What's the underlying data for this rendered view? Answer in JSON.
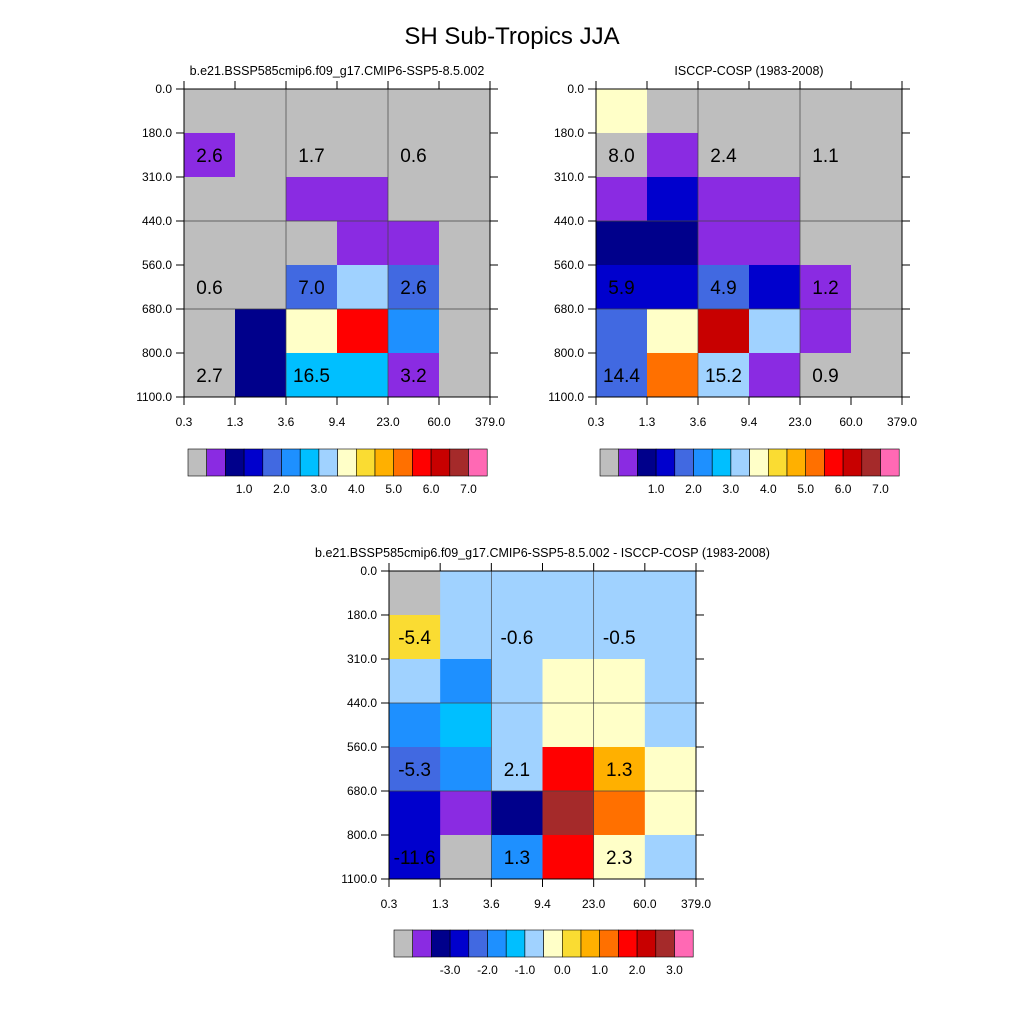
{
  "title": "SH Sub-Tropics JJA",
  "chart_data": [
    {
      "type": "heatmap",
      "title": "b.e21.BSSP585cmip6.f09_g17.CMIP6-SSP5-8.5.002",
      "x_ticks": [
        "0.3",
        "1.3",
        "3.6",
        "9.4",
        "23.0",
        "60.0",
        "379.0"
      ],
      "y_ticks": [
        "0.0",
        "180.0",
        "310.0",
        "440.0",
        "560.0",
        "680.0",
        "800.0",
        "1100.0"
      ],
      "cells": [
        [
          0,
          0,
          0,
          0,
          0,
          0
        ],
        [
          1,
          0,
          0,
          0,
          0,
          0
        ],
        [
          0,
          0,
          1,
          1,
          0,
          0
        ],
        [
          0,
          0,
          0,
          1,
          1,
          0
        ],
        [
          0,
          0,
          4,
          7,
          4,
          0
        ],
        [
          0,
          2,
          8,
          12,
          5,
          0
        ],
        [
          0,
          2,
          6,
          6,
          1,
          0
        ]
      ],
      "annotations": [
        {
          "row": 1,
          "col": 0,
          "text": "2.6"
        },
        {
          "row": 1,
          "col": 2,
          "text": "1.7"
        },
        {
          "row": 1,
          "col": 4,
          "text": "0.6"
        },
        {
          "row": 4,
          "col": 0,
          "text": "0.6"
        },
        {
          "row": 4,
          "col": 2,
          "text": "7.0"
        },
        {
          "row": 4,
          "col": 4,
          "text": "2.6"
        },
        {
          "row": 6,
          "col": 0,
          "text": "2.7"
        },
        {
          "row": 6,
          "col": 2,
          "text": "16.5"
        },
        {
          "row": 6,
          "col": 4,
          "text": "3.2"
        }
      ],
      "legend_colors": [
        "#bebebe",
        "#8a2be2",
        "#00008b",
        "#0000cd",
        "#4169e1",
        "#1e90ff",
        "#00bfff",
        "#a0d2ff",
        "#ffffc8",
        "#fadc32",
        "#ffb000",
        "#ff7000",
        "#ff0000",
        "#c80000",
        "#a52a2a",
        "#ff69b4"
      ],
      "legend_labels": [
        "1.0",
        "2.0",
        "3.0",
        "4.0",
        "5.0",
        "6.0",
        "7.0"
      ]
    },
    {
      "type": "heatmap",
      "title": "ISCCP-COSP (1983-2008)",
      "x_ticks": [
        "0.3",
        "1.3",
        "3.6",
        "9.4",
        "23.0",
        "60.0",
        "379.0"
      ],
      "y_ticks": [
        "0.0",
        "180.0",
        "310.0",
        "440.0",
        "560.0",
        "680.0",
        "800.0",
        "1100.0"
      ],
      "cells": [
        [
          8,
          0,
          0,
          0,
          0,
          0
        ],
        [
          0,
          1,
          0,
          0,
          0,
          0
        ],
        [
          1,
          3,
          1,
          1,
          0,
          0
        ],
        [
          2,
          2,
          1,
          1,
          0,
          0
        ],
        [
          3,
          3,
          4,
          3,
          1,
          0
        ],
        [
          4,
          8,
          13,
          7,
          1,
          0
        ],
        [
          4,
          11,
          7,
          1,
          0,
          0
        ]
      ],
      "annotations": [
        {
          "row": 1,
          "col": 0,
          "text": "8.0"
        },
        {
          "row": 1,
          "col": 2,
          "text": "2.4"
        },
        {
          "row": 1,
          "col": 4,
          "text": "1.1"
        },
        {
          "row": 4,
          "col": 0,
          "text": "5.9"
        },
        {
          "row": 4,
          "col": 2,
          "text": "4.9"
        },
        {
          "row": 4,
          "col": 4,
          "text": "1.2"
        },
        {
          "row": 6,
          "col": 0,
          "text": "14.4"
        },
        {
          "row": 6,
          "col": 2,
          "text": "15.2"
        },
        {
          "row": 6,
          "col": 4,
          "text": "0.9"
        }
      ],
      "legend_colors": [
        "#bebebe",
        "#8a2be2",
        "#00008b",
        "#0000cd",
        "#4169e1",
        "#1e90ff",
        "#00bfff",
        "#a0d2ff",
        "#ffffc8",
        "#fadc32",
        "#ffb000",
        "#ff7000",
        "#ff0000",
        "#c80000",
        "#a52a2a",
        "#ff69b4"
      ],
      "legend_labels": [
        "1.0",
        "2.0",
        "3.0",
        "4.0",
        "5.0",
        "6.0",
        "7.0"
      ]
    },
    {
      "type": "heatmap",
      "title": "b.e21.BSSP585cmip6.f09_g17.CMIP6-SSP5-8.5.002 - ISCCP-COSP (1983-2008)",
      "x_ticks": [
        "0.3",
        "1.3",
        "3.6",
        "9.4",
        "23.0",
        "60.0",
        "379.0"
      ],
      "y_ticks": [
        "0.0",
        "180.0",
        "310.0",
        "440.0",
        "560.0",
        "680.0",
        "800.0",
        "1100.0"
      ],
      "cells": [
        [
          0,
          7,
          7,
          7,
          7,
          7
        ],
        [
          9,
          7,
          7,
          7,
          7,
          7
        ],
        [
          7,
          5,
          7,
          8,
          8,
          7
        ],
        [
          5,
          6,
          7,
          8,
          8,
          7
        ],
        [
          4,
          5,
          7,
          12,
          10,
          8
        ],
        [
          3,
          1,
          2,
          14,
          11,
          8
        ],
        [
          3,
          0,
          5,
          12,
          8,
          7
        ]
      ],
      "annotations": [
        {
          "row": 1,
          "col": 0,
          "text": "-5.4"
        },
        {
          "row": 1,
          "col": 2,
          "text": "-0.6"
        },
        {
          "row": 1,
          "col": 4,
          "text": "-0.5"
        },
        {
          "row": 4,
          "col": 0,
          "text": "-5.3"
        },
        {
          "row": 4,
          "col": 2,
          "text": "2.1"
        },
        {
          "row": 4,
          "col": 4,
          "text": "1.3"
        },
        {
          "row": 6,
          "col": 0,
          "text": "-11.6"
        },
        {
          "row": 6,
          "col": 2,
          "text": "1.3"
        },
        {
          "row": 6,
          "col": 4,
          "text": "2.3"
        }
      ],
      "legend_colors": [
        "#bebebe",
        "#8a2be2",
        "#00008b",
        "#0000cd",
        "#4169e1",
        "#1e90ff",
        "#00bfff",
        "#a0d2ff",
        "#ffffc8",
        "#fadc32",
        "#ffb000",
        "#ff7000",
        "#ff0000",
        "#c80000",
        "#a52a2a",
        "#ff69b4"
      ],
      "legend_labels": [
        "-3.0",
        "-2.0",
        "-1.0",
        "0.0",
        "1.0",
        "2.0",
        "3.0"
      ]
    }
  ]
}
